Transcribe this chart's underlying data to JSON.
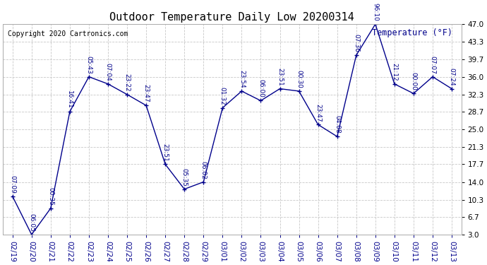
{
  "title": "Outdoor Temperature Daily Low 20200314",
  "copyright": "Copyright 2020 Cartronics.com",
  "ylabel": "Temperature (°F)",
  "background_color": "#ffffff",
  "plot_bg_color": "#ffffff",
  "line_color": "#00008B",
  "dates": [
    "02/19",
    "02/20",
    "02/21",
    "02/22",
    "02/23",
    "02/24",
    "02/25",
    "02/26",
    "02/27",
    "02/28",
    "02/29",
    "03/01",
    "03/02",
    "03/03",
    "03/04",
    "03/05",
    "03/06",
    "03/07",
    "03/08",
    "03/09",
    "03/10",
    "03/11",
    "03/12",
    "03/13"
  ],
  "temps": [
    11.0,
    3.0,
    8.5,
    28.7,
    36.0,
    34.5,
    32.3,
    30.0,
    17.7,
    12.5,
    14.0,
    29.5,
    33.0,
    31.0,
    33.5,
    33.0,
    26.0,
    23.5,
    40.5,
    47.0,
    34.5,
    32.5,
    36.0,
    33.5
  ],
  "labels": [
    "07:09",
    "06:05",
    "00:35",
    "16:41",
    "05:43",
    "07:04",
    "23:22",
    "23:47",
    "23:51",
    "05:35",
    "06:02",
    "01:32",
    "23:54",
    "06:00",
    "23:51",
    "00:30",
    "23:47",
    "04:08",
    "07:36",
    "96:10",
    "21:12",
    "00:00",
    "07:07",
    "07:24"
  ],
  "ylim": [
    3.0,
    47.0
  ],
  "yticks": [
    3.0,
    6.7,
    10.3,
    14.0,
    17.7,
    21.3,
    25.0,
    28.7,
    32.3,
    36.0,
    39.7,
    43.3,
    47.0
  ],
  "grid_color": "#c8c8c8",
  "title_fontsize": 11,
  "label_fontsize": 6.5,
  "axis_fontsize": 7.5,
  "copyright_fontsize": 7
}
